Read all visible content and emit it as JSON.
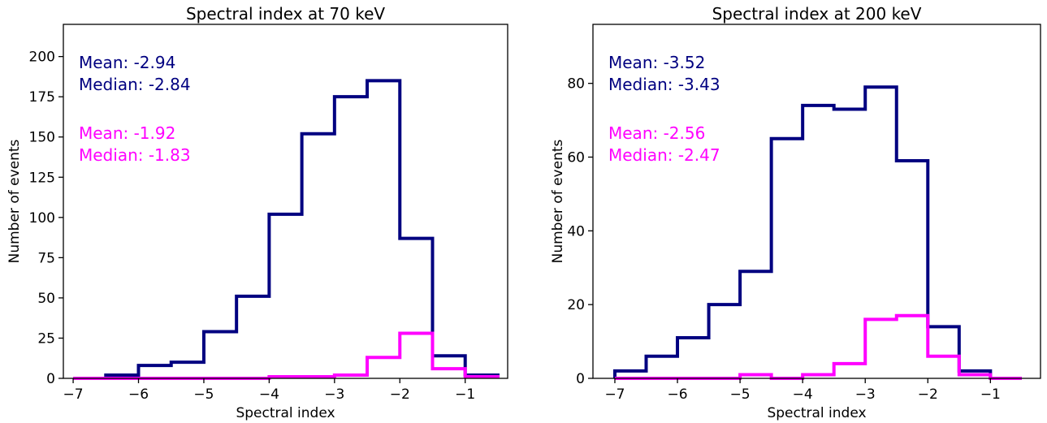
{
  "chart_data": [
    {
      "type": "histogram",
      "title": "Spectral index at 70 keV",
      "xlabel": "Spectral index",
      "ylabel": "Number of events",
      "xlim": [
        -7.15,
        -0.35
      ],
      "ylim": [
        0,
        220
      ],
      "xticks": [
        -7,
        -6,
        -5,
        -4,
        -3,
        -2,
        -1
      ],
      "yticks": [
        0,
        25,
        50,
        75,
        100,
        125,
        150,
        175,
        200
      ],
      "bin_edges": [
        -7.0,
        -6.5,
        -6.0,
        -5.5,
        -5.0,
        -4.5,
        -4.0,
        -3.5,
        -3.0,
        -2.5,
        -2.0,
        -1.5,
        -1.0,
        -0.5
      ],
      "series": [
        {
          "color": "#000080",
          "values": [
            0,
            2,
            8,
            10,
            29,
            51,
            102,
            152,
            175,
            185,
            87,
            14,
            2
          ],
          "stats": [
            "Mean: -2.94",
            "Median: -2.84"
          ]
        },
        {
          "color": "#ff00ff",
          "values": [
            0,
            0,
            0,
            0,
            0,
            0,
            1,
            1,
            2,
            13,
            28,
            6,
            1
          ],
          "stats": [
            "Mean: -1.92",
            "Median: -1.83"
          ]
        }
      ]
    },
    {
      "type": "histogram",
      "title": "Spectral index at 200 keV",
      "xlabel": "Spectral index",
      "ylabel": "Number of events",
      "xlim": [
        -7.35,
        -0.2
      ],
      "ylim": [
        0,
        96
      ],
      "xticks": [
        -7,
        -6,
        -5,
        -4,
        -3,
        -2,
        -1
      ],
      "yticks": [
        0,
        20,
        40,
        60,
        80
      ],
      "bin_edges": [
        -7.0,
        -6.5,
        -6.0,
        -5.5,
        -5.0,
        -4.5,
        -4.0,
        -3.5,
        -3.0,
        -2.5,
        -2.0,
        -1.5,
        -1.0,
        -0.5
      ],
      "series": [
        {
          "color": "#000080",
          "values": [
            2,
            6,
            11,
            20,
            29,
            65,
            74,
            73,
            79,
            59,
            14,
            2,
            0
          ],
          "stats": [
            "Mean: -3.52",
            "Median: -3.43"
          ]
        },
        {
          "color": "#ff00ff",
          "values": [
            0,
            0,
            0,
            0,
            1,
            0,
            1,
            4,
            16,
            17,
            6,
            1,
            0
          ],
          "stats": [
            "Mean: -2.56",
            "Median: -2.47"
          ]
        }
      ]
    }
  ]
}
